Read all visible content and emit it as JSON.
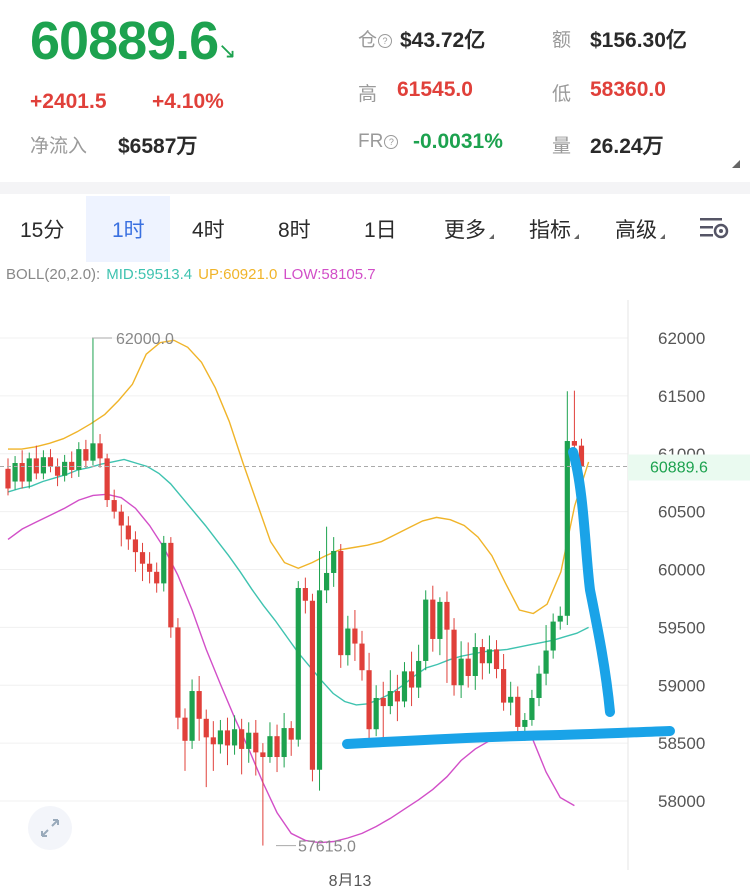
{
  "header": {
    "price": "60889.6",
    "arrow": "↘",
    "change_abs": "+2401.5",
    "change_pct": "+4.10%",
    "netflow_label": "净流入",
    "netflow_value": "$6587万",
    "oi_label": "仓",
    "oi_value": "$43.72亿",
    "amount_label": "额",
    "amount_value": "$156.30亿",
    "high_label": "高",
    "high_value": "61545.0",
    "low_label": "低",
    "low_value": "58360.0",
    "fr_label": "FR",
    "fr_value": "-0.0031%",
    "vol_label": "量",
    "vol_value": "26.24万"
  },
  "tabs": [
    {
      "label": "15分"
    },
    {
      "label": "1时",
      "active": true
    },
    {
      "label": "4时"
    },
    {
      "label": "8时"
    },
    {
      "label": "1日"
    },
    {
      "label": "更多"
    },
    {
      "label": "指标"
    },
    {
      "label": "高级"
    }
  ],
  "settings_icon": "chart-settings-icon",
  "expand_icon": "expand-arrows-icon",
  "colors": {
    "up": "#1da24f",
    "down": "#e0403a",
    "mid": "#3fc3b0",
    "upper": "#f0b429",
    "lower": "#d24fc8",
    "annotation": "#1aa3e8"
  },
  "chart_data": {
    "type": "candlestick",
    "indicator": {
      "label": "BOLL(20,2.0):",
      "mid": "MID:59513.4",
      "up": "UP:60921.0",
      "low": "LOW:58105.7"
    },
    "y_ticks": [
      "62000",
      "61500",
      "61000",
      "60500",
      "60000",
      "59500",
      "59000",
      "58500",
      "58000"
    ],
    "ylim": [
      57430,
      62350
    ],
    "current_price_label": "60889.6",
    "high_marker": "62000.0",
    "low_marker": "57615.0",
    "x_label": "8月13",
    "candles": [
      [
        60870,
        60700,
        60960,
        60640
      ],
      [
        60760,
        60920,
        60980,
        60690
      ],
      [
        60920,
        60760,
        61030,
        60700
      ],
      [
        60760,
        60960,
        61010,
        60700
      ],
      [
        60960,
        60830,
        61070,
        60780
      ],
      [
        60830,
        60970,
        61030,
        60780
      ],
      [
        60970,
        60890,
        61040,
        60840
      ],
      [
        60890,
        60810,
        60960,
        60720
      ],
      [
        60810,
        60930,
        60990,
        60760
      ],
      [
        60930,
        60860,
        61020,
        60790
      ],
      [
        60860,
        61040,
        61100,
        60800
      ],
      [
        61040,
        60940,
        61120,
        60880
      ],
      [
        60940,
        61090,
        62000,
        60900
      ],
      [
        61090,
        60960,
        61170,
        60880
      ],
      [
        60960,
        60600,
        61000,
        60540
      ],
      [
        60600,
        60500,
        60690,
        60440
      ],
      [
        60500,
        60380,
        60560,
        60200
      ],
      [
        60380,
        60260,
        60460,
        60170
      ],
      [
        60260,
        60150,
        60330,
        59980
      ],
      [
        60150,
        60050,
        60230,
        59900
      ],
      [
        60050,
        59980,
        60150,
        59880
      ],
      [
        59980,
        59880,
        60060,
        59800
      ],
      [
        59880,
        60230,
        60290,
        59810
      ],
      [
        60230,
        59500,
        60280,
        59410
      ],
      [
        59500,
        58720,
        59580,
        58620
      ],
      [
        58720,
        58520,
        58800,
        58260
      ],
      [
        58520,
        58950,
        59050,
        58450
      ],
      [
        58950,
        58710,
        59080,
        58520
      ],
      [
        58710,
        58550,
        58790,
        58120
      ],
      [
        58550,
        58490,
        58690,
        58260
      ],
      [
        58490,
        58610,
        58700,
        58410
      ],
      [
        58610,
        58480,
        58720,
        58310
      ],
      [
        58480,
        58620,
        58740,
        58400
      ],
      [
        58620,
        58450,
        58710,
        58230
      ],
      [
        58450,
        58590,
        58680,
        58330
      ],
      [
        58590,
        58420,
        58700,
        58220
      ],
      [
        58420,
        58380,
        58500,
        57615
      ],
      [
        58380,
        58560,
        58680,
        58330
      ],
      [
        58560,
        58380,
        58660,
        58250
      ],
      [
        58380,
        58630,
        58760,
        58290
      ],
      [
        58630,
        58530,
        58690,
        58390
      ],
      [
        58530,
        59840,
        59900,
        58470
      ],
      [
        59840,
        59730,
        59930,
        59620
      ],
      [
        59730,
        58270,
        59790,
        58170
      ],
      [
        58270,
        59820,
        60160,
        58090
      ],
      [
        59820,
        59970,
        60370,
        59710
      ],
      [
        59970,
        60160,
        60280,
        59850
      ],
      [
        60160,
        59260,
        60220,
        59150
      ],
      [
        59260,
        59490,
        59600,
        59170
      ],
      [
        59490,
        59360,
        59650,
        59210
      ],
      [
        59360,
        59130,
        59470,
        59040
      ],
      [
        59130,
        58620,
        59280,
        58520
      ],
      [
        58620,
        58890,
        59000,
        58560
      ],
      [
        58890,
        58820,
        59030,
        58540
      ],
      [
        58820,
        58950,
        59130,
        58750
      ],
      [
        58950,
        58860,
        59090,
        58690
      ],
      [
        58860,
        59120,
        59200,
        58810
      ],
      [
        59120,
        58980,
        59290,
        58820
      ],
      [
        58980,
        59210,
        59350,
        58890
      ],
      [
        59210,
        59740,
        59820,
        59130
      ],
      [
        59740,
        59400,
        59860,
        59290
      ],
      [
        59400,
        59720,
        59760,
        59260
      ],
      [
        59720,
        59480,
        59810,
        59020
      ],
      [
        59480,
        59000,
        59580,
        58910
      ],
      [
        59000,
        59230,
        59380,
        58890
      ],
      [
        59230,
        59080,
        59370,
        58980
      ],
      [
        59080,
        59330,
        59450,
        58960
      ],
      [
        59330,
        59190,
        59400,
        59050
      ],
      [
        59190,
        59310,
        59430,
        59100
      ],
      [
        59310,
        59140,
        59390,
        59060
      ],
      [
        59140,
        58850,
        59270,
        58780
      ],
      [
        58850,
        58900,
        59030,
        58740
      ],
      [
        58900,
        58640,
        58990,
        58560
      ],
      [
        58640,
        58700,
        58760,
        58520
      ],
      [
        58700,
        58890,
        58960,
        58650
      ],
      [
        58890,
        59100,
        59170,
        58820
      ],
      [
        59100,
        59300,
        59520,
        59000
      ],
      [
        59300,
        59550,
        59620,
        59230
      ],
      [
        59550,
        59600,
        59680,
        59480
      ],
      [
        59600,
        61110,
        61540,
        59520
      ],
      [
        61110,
        61070,
        61545,
        60920
      ],
      [
        61070,
        60890,
        61130,
        60820
      ]
    ],
    "mid_line": [
      60670,
      60700,
      60720,
      60760,
      60790,
      60820,
      60860,
      60880,
      60910,
      60930,
      60950,
      60920,
      60890,
      60830,
      60740,
      60620,
      60500,
      60380,
      60250,
      60120,
      59980,
      59830,
      59690,
      59560,
      59420,
      59280,
      59160,
      59040,
      58930,
      58860,
      58830,
      58840,
      58880,
      58930,
      59000,
      59080,
      59150,
      59180,
      59220,
      59250,
      59270,
      59290,
      59300,
      59310,
      59330,
      59350,
      59370,
      59390,
      59420,
      59450,
      59500
    ],
    "upper_line": [
      61040,
      61040,
      61060,
      61090,
      61130,
      61190,
      61260,
      61340,
      61460,
      61600,
      61860,
      61960,
      61980,
      61920,
      61790,
      61570,
      61280,
      60920,
      60580,
      60240,
      60060,
      60010,
      60060,
      60120,
      60170,
      60190,
      60210,
      60240,
      60300,
      60360,
      60420,
      60450,
      60430,
      60380,
      60280,
      60120,
      59880,
      59650,
      59620,
      59700,
      59980,
      60550,
      60930
    ],
    "lower_line": [
      60260,
      60350,
      60410,
      60470,
      60530,
      60600,
      60640,
      60650,
      60620,
      60530,
      60380,
      60190,
      59950,
      59650,
      59310,
      59010,
      58720,
      58450,
      58160,
      57900,
      57720,
      57660,
      57640,
      57650,
      57680,
      57720,
      57780,
      57850,
      57930,
      58010,
      58100,
      58210,
      58350,
      58450,
      58520,
      58550,
      58560,
      58550,
      58250,
      58030,
      57960
    ]
  }
}
